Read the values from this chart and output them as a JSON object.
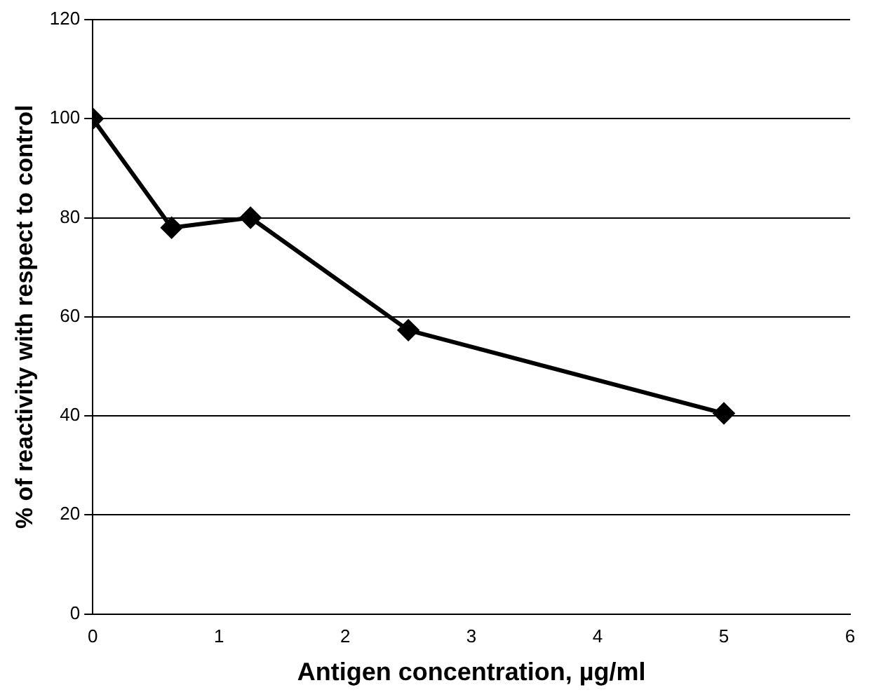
{
  "chart_data": {
    "type": "line",
    "xlabel": "Antigen concentration, µg/ml",
    "ylabel": "% of reactivity with respect to control",
    "x": [
      0,
      0.625,
      1.25,
      2.5,
      5
    ],
    "series": [
      {
        "color": "#000000",
        "values": [
          100,
          78,
          80,
          57.3,
          40.5
        ]
      }
    ],
    "xlim": [
      0,
      6
    ],
    "xticks": [
      0,
      1,
      2,
      3,
      4,
      5,
      6
    ],
    "ylim": [
      0,
      120
    ],
    "yticks": [
      0,
      20,
      40,
      60,
      80,
      100,
      120
    ],
    "grid": "y",
    "legend": false,
    "marker": "diamond",
    "line_style": "solid"
  }
}
